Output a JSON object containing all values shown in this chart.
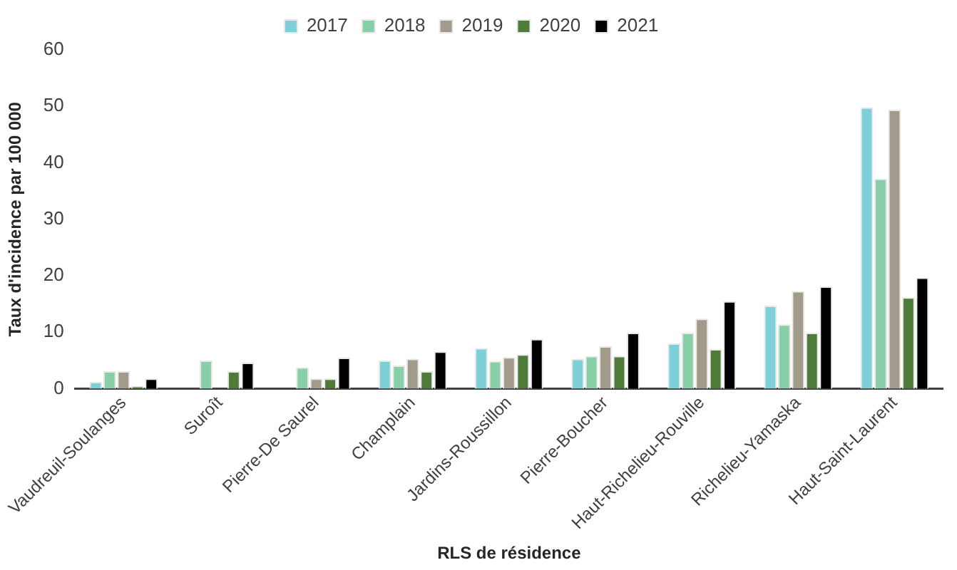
{
  "chart_data": {
    "type": "bar",
    "xlabel": "RLS de résidence",
    "ylabel": "Taux d'incidence par 100 000",
    "categories": [
      "Vaudreuil-Soulanges",
      "Suroît",
      "Pierre-De Saurel",
      "Champlain",
      "Jardins-Roussillon",
      "Pierre-Boucher",
      "Haut-Richelieu-Rouville",
      "Richelieu-Yamaska",
      "Haut-Saint-Laurent"
    ],
    "series": [
      {
        "name": "2017",
        "color": "#7dd0d8",
        "values": [
          1.2,
          null,
          null,
          5.0,
          7.2,
          5.3,
          8.0,
          14.7,
          49.8
        ]
      },
      {
        "name": "2018",
        "color": "#88cfa8",
        "values": [
          3.1,
          5.0,
          3.8,
          4.1,
          4.9,
          5.8,
          9.9,
          11.4,
          37.2
        ]
      },
      {
        "name": "2019",
        "color": "#a29b8b",
        "values": [
          3.1,
          null,
          1.8,
          5.3,
          5.6,
          7.5,
          12.4,
          17.3,
          49.4
        ]
      },
      {
        "name": "2020",
        "color": "#4e7a3a",
        "values": [
          0.5,
          3.1,
          1.8,
          3.1,
          6.1,
          5.8,
          7.0,
          9.9,
          16.2
        ]
      },
      {
        "name": "2021",
        "color": "#000000",
        "values": [
          1.8,
          4.6,
          5.5,
          6.6,
          8.8,
          9.9,
          15.5,
          18.1,
          19.7
        ]
      }
    ],
    "ylim": [
      0,
      60
    ],
    "yticks": [
      0,
      10,
      20,
      30,
      40,
      50,
      60
    ],
    "grid": false,
    "legend": "top"
  }
}
